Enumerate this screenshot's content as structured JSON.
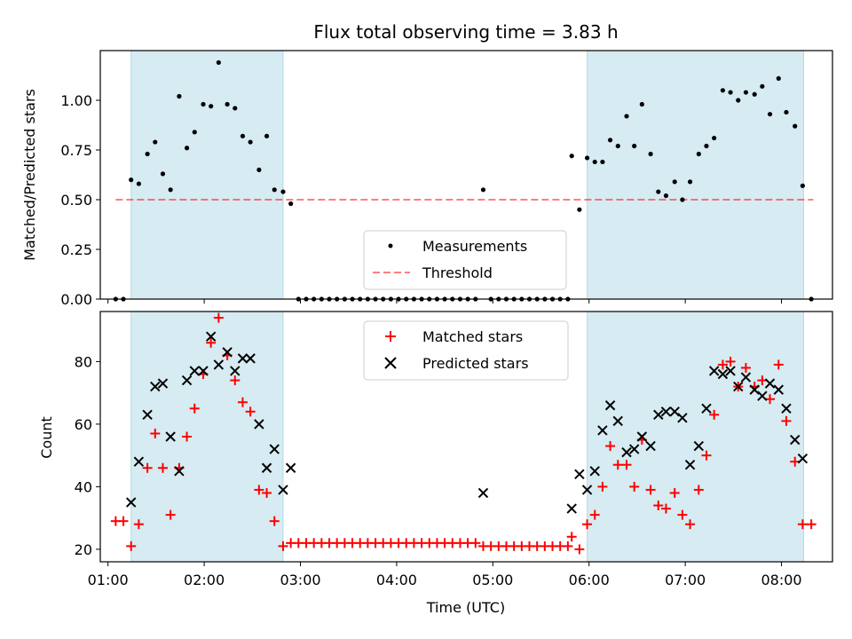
{
  "figure": {
    "title": "Flux total observing time = 3.83 h",
    "xlabel": "Time (UTC)"
  },
  "colors": {
    "shade": "#add8e6",
    "threshold": "#ff0000",
    "matched": "#ff0000",
    "predicted": "#000000",
    "measurement": "#000000"
  },
  "chart_data": [
    {
      "type": "scatter",
      "panel": "top",
      "ylabel": "Matched/Predicted stars",
      "xlim": [
        0.92,
        8.53
      ],
      "ylim": [
        0,
        1.25
      ],
      "x_tick_labels": [
        "01:00",
        "02:00",
        "03:00",
        "04:00",
        "05:00",
        "06:00",
        "07:00",
        "08:00"
      ],
      "x_ticks": [
        1,
        2,
        3,
        4,
        5,
        6,
        7,
        8
      ],
      "y_ticks": [
        0,
        0.25,
        0.5,
        0.75,
        1.0
      ],
      "y_tick_labels": [
        "0.00",
        "0.25",
        "0.50",
        "0.75",
        "1.00"
      ],
      "shaded_regions": [
        [
          1.24,
          2.82
        ],
        [
          5.98,
          8.23
        ]
      ],
      "threshold": {
        "name": "Threshold",
        "y": 0.5,
        "x_range": [
          1.08,
          8.33
        ]
      },
      "legend": {
        "placement": "lower center",
        "entries": [
          "Measurements",
          "Threshold"
        ]
      },
      "series": [
        {
          "name": "Measurements",
          "points": [
            [
              1.08,
              0.0
            ],
            [
              1.16,
              0.0
            ],
            [
              1.24,
              0.6
            ],
            [
              1.32,
              0.58
            ],
            [
              1.41,
              0.73
            ],
            [
              1.49,
              0.79
            ],
            [
              1.57,
              0.63
            ],
            [
              1.65,
              0.55
            ],
            [
              1.74,
              1.02
            ],
            [
              1.82,
              0.76
            ],
            [
              1.9,
              0.84
            ],
            [
              1.99,
              0.98
            ],
            [
              2.07,
              0.97
            ],
            [
              2.15,
              1.19
            ],
            [
              2.24,
              0.98
            ],
            [
              2.32,
              0.96
            ],
            [
              2.4,
              0.82
            ],
            [
              2.48,
              0.79
            ],
            [
              2.57,
              0.65
            ],
            [
              2.65,
              0.82
            ],
            [
              2.73,
              0.55
            ],
            [
              2.82,
              0.54
            ],
            [
              2.9,
              0.48
            ],
            [
              2.98,
              0.0
            ],
            [
              3.06,
              0.0
            ],
            [
              3.14,
              0.0
            ],
            [
              3.22,
              0.0
            ],
            [
              3.3,
              0.0
            ],
            [
              3.38,
              0.0
            ],
            [
              3.46,
              0.0
            ],
            [
              3.54,
              0.0
            ],
            [
              3.62,
              0.0
            ],
            [
              3.7,
              0.0
            ],
            [
              3.78,
              0.0
            ],
            [
              3.86,
              0.0
            ],
            [
              3.94,
              0.0
            ],
            [
              4.02,
              0.0
            ],
            [
              4.1,
              0.0
            ],
            [
              4.18,
              0.0
            ],
            [
              4.26,
              0.0
            ],
            [
              4.34,
              0.0
            ],
            [
              4.42,
              0.0
            ],
            [
              4.5,
              0.0
            ],
            [
              4.58,
              0.0
            ],
            [
              4.66,
              0.0
            ],
            [
              4.74,
              0.0
            ],
            [
              4.82,
              0.0
            ],
            [
              4.9,
              0.55
            ],
            [
              4.98,
              0.0
            ],
            [
              5.06,
              0.0
            ],
            [
              5.14,
              0.0
            ],
            [
              5.22,
              0.0
            ],
            [
              5.3,
              0.0
            ],
            [
              5.38,
              0.0
            ],
            [
              5.46,
              0.0
            ],
            [
              5.54,
              0.0
            ],
            [
              5.62,
              0.0
            ],
            [
              5.7,
              0.0
            ],
            [
              5.78,
              0.0
            ],
            [
              5.82,
              0.72
            ],
            [
              5.9,
              0.45
            ],
            [
              5.98,
              0.71
            ],
            [
              6.06,
              0.69
            ],
            [
              6.14,
              0.69
            ],
            [
              6.22,
              0.8
            ],
            [
              6.3,
              0.77
            ],
            [
              6.39,
              0.92
            ],
            [
              6.47,
              0.77
            ],
            [
              6.55,
              0.98
            ],
            [
              6.64,
              0.73
            ],
            [
              6.72,
              0.54
            ],
            [
              6.8,
              0.52
            ],
            [
              6.89,
              0.59
            ],
            [
              6.97,
              0.5
            ],
            [
              7.05,
              0.59
            ],
            [
              7.14,
              0.73
            ],
            [
              7.22,
              0.77
            ],
            [
              7.3,
              0.81
            ],
            [
              7.39,
              1.05
            ],
            [
              7.47,
              1.04
            ],
            [
              7.55,
              1.0
            ],
            [
              7.63,
              1.04
            ],
            [
              7.72,
              1.03
            ],
            [
              7.8,
              1.07
            ],
            [
              7.88,
              0.93
            ],
            [
              7.97,
              1.11
            ],
            [
              8.05,
              0.94
            ],
            [
              8.14,
              0.87
            ],
            [
              8.22,
              0.57
            ],
            [
              8.31,
              0.0
            ]
          ]
        }
      ]
    },
    {
      "type": "scatter",
      "panel": "bottom",
      "ylabel": "Count",
      "xlim": [
        0.92,
        8.53
      ],
      "ylim": [
        16,
        96
      ],
      "x_tick_labels": [
        "01:00",
        "02:00",
        "03:00",
        "04:00",
        "05:00",
        "06:00",
        "07:00",
        "08:00"
      ],
      "x_ticks": [
        1,
        2,
        3,
        4,
        5,
        6,
        7,
        8
      ],
      "y_ticks": [
        20,
        40,
        60,
        80
      ],
      "y_tick_labels": [
        "20",
        "40",
        "60",
        "80"
      ],
      "shaded_regions": [
        [
          1.24,
          2.82
        ],
        [
          5.98,
          8.23
        ]
      ],
      "legend": {
        "placement": "upper center",
        "entries": [
          "Matched stars",
          "Predicted stars"
        ]
      },
      "series": [
        {
          "name": "Matched stars",
          "marker": "plus",
          "points": [
            [
              1.08,
              29
            ],
            [
              1.16,
              29
            ],
            [
              1.24,
              21
            ],
            [
              1.32,
              28
            ],
            [
              1.41,
              46
            ],
            [
              1.49,
              57
            ],
            [
              1.57,
              46
            ],
            [
              1.65,
              31
            ],
            [
              1.74,
              46
            ],
            [
              1.82,
              56
            ],
            [
              1.9,
              65
            ],
            [
              1.99,
              76
            ],
            [
              2.07,
              86
            ],
            [
              2.15,
              94
            ],
            [
              2.24,
              82
            ],
            [
              2.32,
              74
            ],
            [
              2.4,
              67
            ],
            [
              2.48,
              64
            ],
            [
              2.57,
              39
            ],
            [
              2.65,
              38
            ],
            [
              2.73,
              29
            ],
            [
              2.82,
              21
            ],
            [
              2.9,
              22
            ],
            [
              2.98,
              22
            ],
            [
              3.06,
              22
            ],
            [
              3.14,
              22
            ],
            [
              3.22,
              22
            ],
            [
              3.3,
              22
            ],
            [
              3.38,
              22
            ],
            [
              3.46,
              22
            ],
            [
              3.54,
              22
            ],
            [
              3.62,
              22
            ],
            [
              3.7,
              22
            ],
            [
              3.78,
              22
            ],
            [
              3.86,
              22
            ],
            [
              3.94,
              22
            ],
            [
              4.02,
              22
            ],
            [
              4.1,
              22
            ],
            [
              4.18,
              22
            ],
            [
              4.26,
              22
            ],
            [
              4.34,
              22
            ],
            [
              4.42,
              22
            ],
            [
              4.5,
              22
            ],
            [
              4.58,
              22
            ],
            [
              4.66,
              22
            ],
            [
              4.74,
              22
            ],
            [
              4.82,
              22
            ],
            [
              4.9,
              21
            ],
            [
              4.98,
              21
            ],
            [
              5.06,
              21
            ],
            [
              5.14,
              21
            ],
            [
              5.22,
              21
            ],
            [
              5.3,
              21
            ],
            [
              5.38,
              21
            ],
            [
              5.46,
              21
            ],
            [
              5.54,
              21
            ],
            [
              5.62,
              21
            ],
            [
              5.7,
              21
            ],
            [
              5.78,
              21
            ],
            [
              5.82,
              24
            ],
            [
              5.9,
              20
            ],
            [
              5.98,
              28
            ],
            [
              6.06,
              31
            ],
            [
              6.14,
              40
            ],
            [
              6.22,
              53
            ],
            [
              6.3,
              47
            ],
            [
              6.39,
              47
            ],
            [
              6.47,
              40
            ],
            [
              6.55,
              55
            ],
            [
              6.64,
              39
            ],
            [
              6.72,
              34
            ],
            [
              6.8,
              33
            ],
            [
              6.89,
              38
            ],
            [
              6.97,
              31
            ],
            [
              7.05,
              28
            ],
            [
              7.14,
              39
            ],
            [
              7.22,
              50
            ],
            [
              7.3,
              63
            ],
            [
              7.39,
              79
            ],
            [
              7.47,
              80
            ],
            [
              7.55,
              72
            ],
            [
              7.63,
              78
            ],
            [
              7.72,
              72
            ],
            [
              7.8,
              74
            ],
            [
              7.88,
              68
            ],
            [
              7.97,
              79
            ],
            [
              8.05,
              61
            ],
            [
              8.14,
              48
            ],
            [
              8.22,
              28
            ],
            [
              8.31,
              28
            ]
          ]
        },
        {
          "name": "Predicted stars",
          "marker": "x",
          "points": [
            [
              1.24,
              35
            ],
            [
              1.32,
              48
            ],
            [
              1.41,
              63
            ],
            [
              1.49,
              72
            ],
            [
              1.57,
              73
            ],
            [
              1.65,
              56
            ],
            [
              1.74,
              45
            ],
            [
              1.82,
              74
            ],
            [
              1.9,
              77
            ],
            [
              1.99,
              77
            ],
            [
              2.07,
              88
            ],
            [
              2.15,
              79
            ],
            [
              2.24,
              83
            ],
            [
              2.32,
              77
            ],
            [
              2.4,
              81
            ],
            [
              2.48,
              81
            ],
            [
              2.57,
              60
            ],
            [
              2.65,
              46
            ],
            [
              2.73,
              52
            ],
            [
              2.82,
              39
            ],
            [
              2.9,
              46
            ],
            [
              4.9,
              38
            ],
            [
              5.82,
              33
            ],
            [
              5.9,
              44
            ],
            [
              5.98,
              39
            ],
            [
              6.06,
              45
            ],
            [
              6.14,
              58
            ],
            [
              6.22,
              66
            ],
            [
              6.3,
              61
            ],
            [
              6.39,
              51
            ],
            [
              6.47,
              52
            ],
            [
              6.55,
              56
            ],
            [
              6.64,
              53
            ],
            [
              6.72,
              63
            ],
            [
              6.8,
              64
            ],
            [
              6.89,
              64
            ],
            [
              6.97,
              62
            ],
            [
              7.05,
              47
            ],
            [
              7.14,
              53
            ],
            [
              7.22,
              65
            ],
            [
              7.3,
              77
            ],
            [
              7.39,
              76
            ],
            [
              7.47,
              77
            ],
            [
              7.55,
              72
            ],
            [
              7.63,
              75
            ],
            [
              7.72,
              71
            ],
            [
              7.8,
              69
            ],
            [
              7.88,
              73
            ],
            [
              7.97,
              71
            ],
            [
              8.05,
              65
            ],
            [
              8.14,
              55
            ],
            [
              8.22,
              49
            ]
          ]
        }
      ]
    }
  ]
}
